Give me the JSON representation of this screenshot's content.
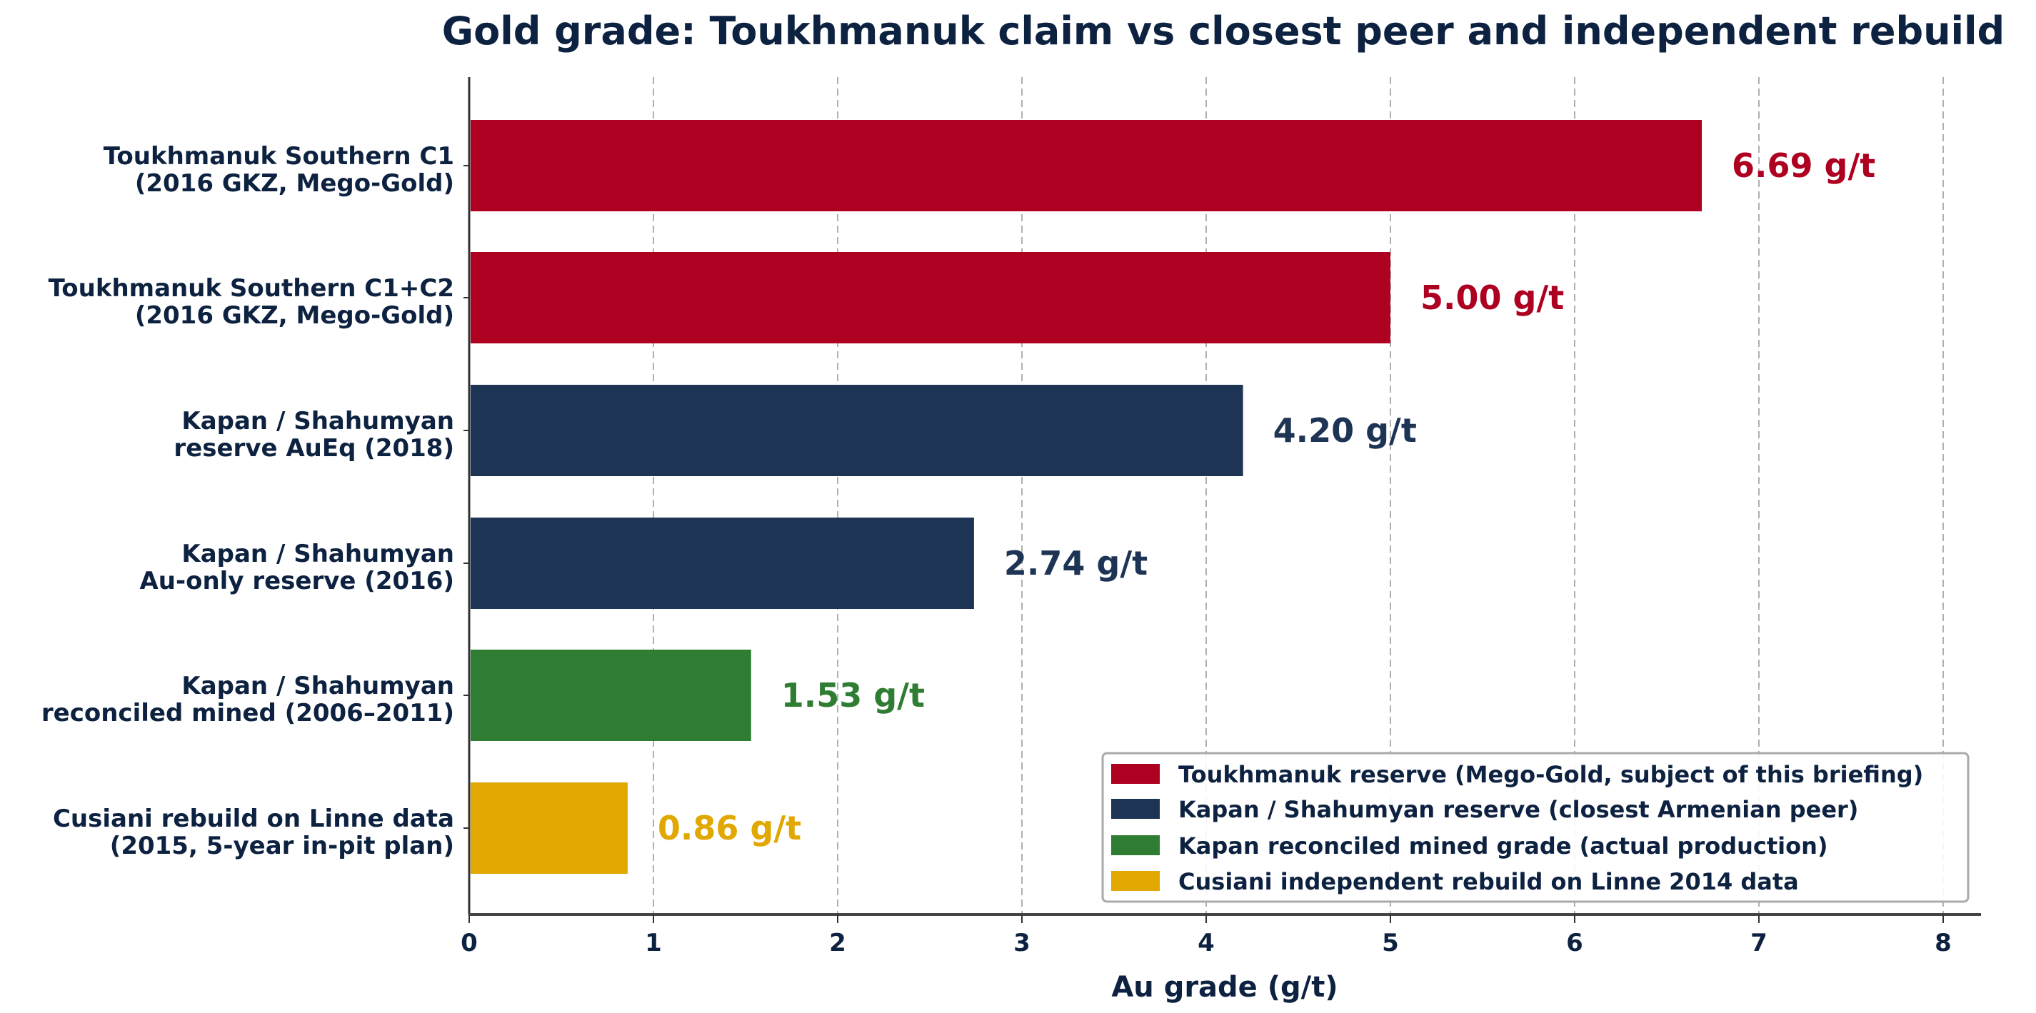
{
  "chart_data": {
    "type": "bar",
    "orientation": "horizontal",
    "title": "Gold grade: Toukhmanuk claim vs closest peer and independent rebuild",
    "xlabel": "Au grade (g/t)",
    "ylabel": "",
    "xlim": [
      0,
      8.2
    ],
    "xticks": [
      "0",
      "1",
      "2",
      "3",
      "4",
      "5",
      "6",
      "7",
      "8"
    ],
    "grid": "x-dashed",
    "legend_position": "lower-right",
    "categories": [
      [
        "Toukhmanuk Southern C1",
        "(2016 GKZ, Mego-Gold)"
      ],
      [
        "Toukhmanuk Southern C1+C2",
        "(2016 GKZ, Mego-Gold)"
      ],
      [
        "Kapan / Shahumyan",
        "reserve AuEq (2018)"
      ],
      [
        "Kapan / Shahumyan",
        "Au-only reserve (2016)"
      ],
      [
        "Kapan / Shahumyan",
        "reconciled mined (2006–2011)"
      ],
      [
        "Cusiani rebuild on Linne data",
        "(2015, 5-year in-pit plan)"
      ]
    ],
    "values": [
      6.69,
      5.0,
      4.2,
      2.74,
      1.53,
      0.86
    ],
    "value_labels": [
      "6.69 g/t",
      "5.00 g/t",
      "4.20 g/t",
      "2.74 g/t",
      "1.53 g/t",
      "0.86 g/t"
    ],
    "bar_group": [
      0,
      0,
      1,
      1,
      2,
      3
    ],
    "legend": [
      {
        "name": "Toukhmanuk reserve (Mego-Gold, subject of this briefing)",
        "color": "#AE0020"
      },
      {
        "name": "Kapan / Shahumyan reserve (closest Armenian peer)",
        "color": "#1E3455"
      },
      {
        "name": "Kapan reconciled mined grade (actual production)",
        "color": "#2E7D32"
      },
      {
        "name": "Cusiani independent rebuild on Linne 2014 data",
        "color": "#E0A800"
      }
    ],
    "text_color": "#0D2240"
  }
}
